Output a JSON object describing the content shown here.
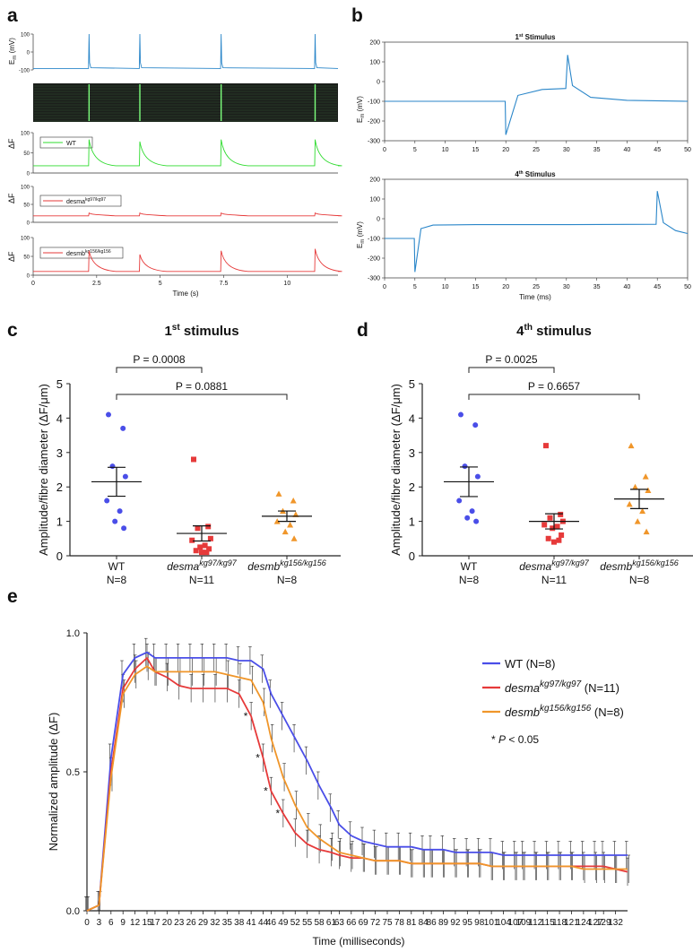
{
  "panels": {
    "a": {
      "letter": "a",
      "em_label": "E",
      "em_sub": "m",
      "em_unit": " (mV)",
      "df_label": "ΔF",
      "legend_wt": "WT",
      "legend_a_main": "desma",
      "legend_a_sup": "kg97/kg97",
      "legend_b_main": "desmb",
      "legend_b_sup": "kg156/kg156",
      "xlabel": "Time (s)",
      "em_ticks": [
        "100",
        "0",
        "-100"
      ],
      "df_ticks": [
        "100",
        "50",
        "0"
      ],
      "x_ticks": [
        "0",
        "2.5",
        "5",
        "7.5",
        "10"
      ]
    },
    "b": {
      "letter": "b",
      "title1_main": "1",
      "title1_sup": "st",
      "title1_rest": " Stimulus",
      "title2_main": "4",
      "title2_sup": "th",
      "title2_rest": " Stimulus",
      "ylabel_main": "E",
      "ylabel_sub": "m",
      "ylabel_unit": " (mV)",
      "xlabel": "Time (ms)",
      "y_ticks": [
        "200",
        "100",
        "0",
        "-100",
        "-200",
        "-300"
      ],
      "x_ticks": [
        "0",
        "5",
        "10",
        "15",
        "20",
        "25",
        "30",
        "35",
        "40",
        "45",
        "50"
      ]
    },
    "c": {
      "letter": "c",
      "title_main": "1",
      "title_sup": "st",
      "title_rest": " stimulus",
      "p1": "P = 0.0008",
      "p2": "P = 0.0881"
    },
    "d": {
      "letter": "d",
      "title_main": "4",
      "title_sup": "th",
      "title_rest": " stimulus",
      "p1": "P = 0.0025",
      "p2": "P = 0.6657"
    },
    "cd_common": {
      "ylabel": "Amplitude/fibre diameter (ΔF/μm)",
      "y_ticks": [
        "5",
        "4",
        "3",
        "2",
        "1",
        "0"
      ],
      "g1": "WT",
      "g1n": "N=8",
      "g2_main": "desma",
      "g2_sup": "kg97/kg97",
      "g2n": "N=11",
      "g3_main": "desmb",
      "g3_sup": "kg156/kg156",
      "g3n": "N=8"
    },
    "e": {
      "letter": "e",
      "ylabel": "Normalized amplitude (ΔF)",
      "xlabel": "Time (milliseconds)",
      "y_ticks": [
        "1.0",
        "0.5",
        "0.0"
      ],
      "x_ticks": [
        "0",
        "3",
        "6",
        "9",
        "12",
        "15",
        "17",
        "20",
        "23",
        "26",
        "29",
        "32",
        "35",
        "38",
        "41",
        "44",
        "46",
        "49",
        "52",
        "55",
        "58",
        "61",
        "63",
        "66",
        "69",
        "72",
        "75",
        "78",
        "81",
        "84",
        "86",
        "89",
        "92",
        "95",
        "98",
        "101",
        "104",
        "107",
        "109",
        "112",
        "115",
        "118",
        "121",
        "124",
        "127",
        "129",
        "132"
      ],
      "legend": [
        {
          "main": "WT",
          "sup": "",
          "rest": " (N=8)",
          "color": "#4a4ee8"
        },
        {
          "main": "desma",
          "sup": "kg97/kg97",
          "rest": " (N=11)",
          "color": "#e63a3a"
        },
        {
          "main": "desmb",
          "sup": "kg156/kg156",
          "rest": " (N=8)",
          "color": "#f0962a"
        }
      ],
      "sig_note": "* P < 0.05"
    }
  },
  "colors": {
    "trace_blue": "#2a86c9",
    "wt": "#4a4ee8",
    "desma": "#e63a3a",
    "desmb": "#f0962a",
    "green": "#2fdb2f"
  },
  "chart_data": [
    {
      "type": "line",
      "panel": "a",
      "series": [
        {
          "name": "WT",
          "x": [
            0,
            2.2,
            4.2,
            7.4,
            11.1
          ],
          "spikes_delta_f": [
            65,
            60,
            65,
            65
          ]
        },
        {
          "name": "desma kg97/kg97",
          "spikes_delta_f": [
            8,
            8,
            8,
            8
          ]
        },
        {
          "name": "desmb kg156/kg156",
          "spikes_delta_f": [
            55,
            45,
            55,
            60
          ]
        }
      ],
      "stimulus_times_s": [
        2.2,
        4.2,
        7.4,
        11.1
      ],
      "xlim": [
        0,
        12
      ]
    },
    {
      "type": "line",
      "panel": "b1",
      "x": [
        0,
        19.9,
        20,
        22,
        26,
        29.9,
        30.2,
        31,
        34,
        40,
        50
      ],
      "y": [
        -100,
        -100,
        -270,
        -70,
        -40,
        -35,
        135,
        -20,
        -80,
        -95,
        -100
      ],
      "xlim": [
        0,
        50
      ],
      "ylim": [
        -300,
        200
      ]
    },
    {
      "type": "line",
      "panel": "b2",
      "x": [
        0,
        4.9,
        5,
        6,
        8,
        15,
        30,
        44.8,
        45,
        46,
        48,
        50
      ],
      "y": [
        -100,
        -100,
        -270,
        -50,
        -32,
        -30,
        -30,
        -28,
        140,
        -20,
        -60,
        -75
      ],
      "xlim": [
        0,
        50
      ],
      "ylim": [
        -300,
        200
      ]
    },
    {
      "type": "scatter",
      "panel": "c",
      "ylim": [
        0,
        5
      ],
      "series": [
        {
          "name": "WT",
          "values": [
            4.1,
            3.7,
            2.6,
            2.3,
            1.6,
            1.3,
            1.0,
            0.8
          ],
          "mean": 2.15,
          "sem": 0.42
        },
        {
          "name": "desma kg97/kg97",
          "values": [
            2.8,
            0.85,
            0.8,
            0.5,
            0.45,
            0.3,
            0.25,
            0.2,
            0.15,
            0.1,
            0.1
          ],
          "mean": 0.65,
          "sem": 0.22
        },
        {
          "name": "desmb kg156/kg156",
          "values": [
            1.8,
            1.6,
            1.3,
            1.2,
            1.0,
            0.9,
            0.7,
            0.5
          ],
          "mean": 1.15,
          "sem": 0.15
        }
      ]
    },
    {
      "type": "scatter",
      "panel": "d",
      "ylim": [
        0,
        5
      ],
      "series": [
        {
          "name": "WT",
          "values": [
            4.1,
            3.8,
            2.6,
            2.3,
            1.6,
            1.3,
            1.1,
            1.0
          ],
          "mean": 2.15,
          "sem": 0.43
        },
        {
          "name": "desma kg97/kg97",
          "values": [
            3.2,
            1.2,
            1.1,
            1.0,
            0.9,
            0.85,
            0.8,
            0.6,
            0.5,
            0.45,
            0.4
          ],
          "mean": 1.0,
          "sem": 0.22
        },
        {
          "name": "desmb kg156/kg156",
          "values": [
            3.2,
            2.3,
            2.0,
            1.9,
            1.5,
            1.3,
            1.0,
            0.7
          ],
          "mean": 1.65,
          "sem": 0.28
        }
      ]
    },
    {
      "type": "line",
      "panel": "e",
      "ylim": [
        0,
        1
      ],
      "xlim": [
        0,
        135
      ],
      "x": [
        0,
        3,
        6,
        9,
        12,
        15,
        17,
        20,
        23,
        26,
        29,
        32,
        35,
        38,
        41,
        44,
        46,
        49,
        52,
        55,
        58,
        61,
        63,
        66,
        69,
        72,
        75,
        78,
        81,
        84,
        86,
        89,
        92,
        95,
        98,
        101,
        104,
        107,
        109,
        112,
        115,
        118,
        121,
        124,
        127,
        129,
        132,
        135
      ],
      "series": [
        {
          "name": "WT (N=8)",
          "values": [
            0,
            0.02,
            0.55,
            0.85,
            0.91,
            0.93,
            0.91,
            0.91,
            0.91,
            0.91,
            0.91,
            0.91,
            0.91,
            0.9,
            0.9,
            0.87,
            0.78,
            0.7,
            0.62,
            0.54,
            0.45,
            0.37,
            0.31,
            0.27,
            0.25,
            0.24,
            0.23,
            0.23,
            0.23,
            0.22,
            0.22,
            0.22,
            0.21,
            0.21,
            0.21,
            0.21,
            0.2,
            0.2,
            0.2,
            0.2,
            0.2,
            0.2,
            0.2,
            0.2,
            0.2,
            0.2,
            0.2,
            0.2
          ],
          "sem": 0.05
        },
        {
          "name": "desma kg97/kg97 (N=11)",
          "values": [
            0,
            0.02,
            0.5,
            0.8,
            0.87,
            0.91,
            0.86,
            0.84,
            0.81,
            0.8,
            0.8,
            0.8,
            0.8,
            0.78,
            0.7,
            0.55,
            0.43,
            0.35,
            0.28,
            0.24,
            0.22,
            0.21,
            0.2,
            0.19,
            0.19,
            0.18,
            0.18,
            0.18,
            0.17,
            0.17,
            0.17,
            0.17,
            0.17,
            0.17,
            0.17,
            0.16,
            0.16,
            0.16,
            0.16,
            0.16,
            0.16,
            0.16,
            0.16,
            0.16,
            0.16,
            0.16,
            0.15,
            0.14
          ],
          "sem": 0.05
        },
        {
          "name": "desmb kg156/kg156 (N=8)",
          "values": [
            0,
            0.02,
            0.48,
            0.78,
            0.85,
            0.88,
            0.86,
            0.86,
            0.86,
            0.86,
            0.86,
            0.86,
            0.85,
            0.84,
            0.83,
            0.75,
            0.62,
            0.48,
            0.38,
            0.3,
            0.26,
            0.23,
            0.21,
            0.2,
            0.19,
            0.18,
            0.18,
            0.18,
            0.17,
            0.17,
            0.17,
            0.17,
            0.17,
            0.17,
            0.17,
            0.16,
            0.16,
            0.16,
            0.16,
            0.16,
            0.16,
            0.16,
            0.16,
            0.15,
            0.15,
            0.15,
            0.15,
            0.15
          ],
          "sem": 0.05
        }
      ],
      "significant_x": [
        41,
        44,
        46,
        49
      ]
    }
  ]
}
